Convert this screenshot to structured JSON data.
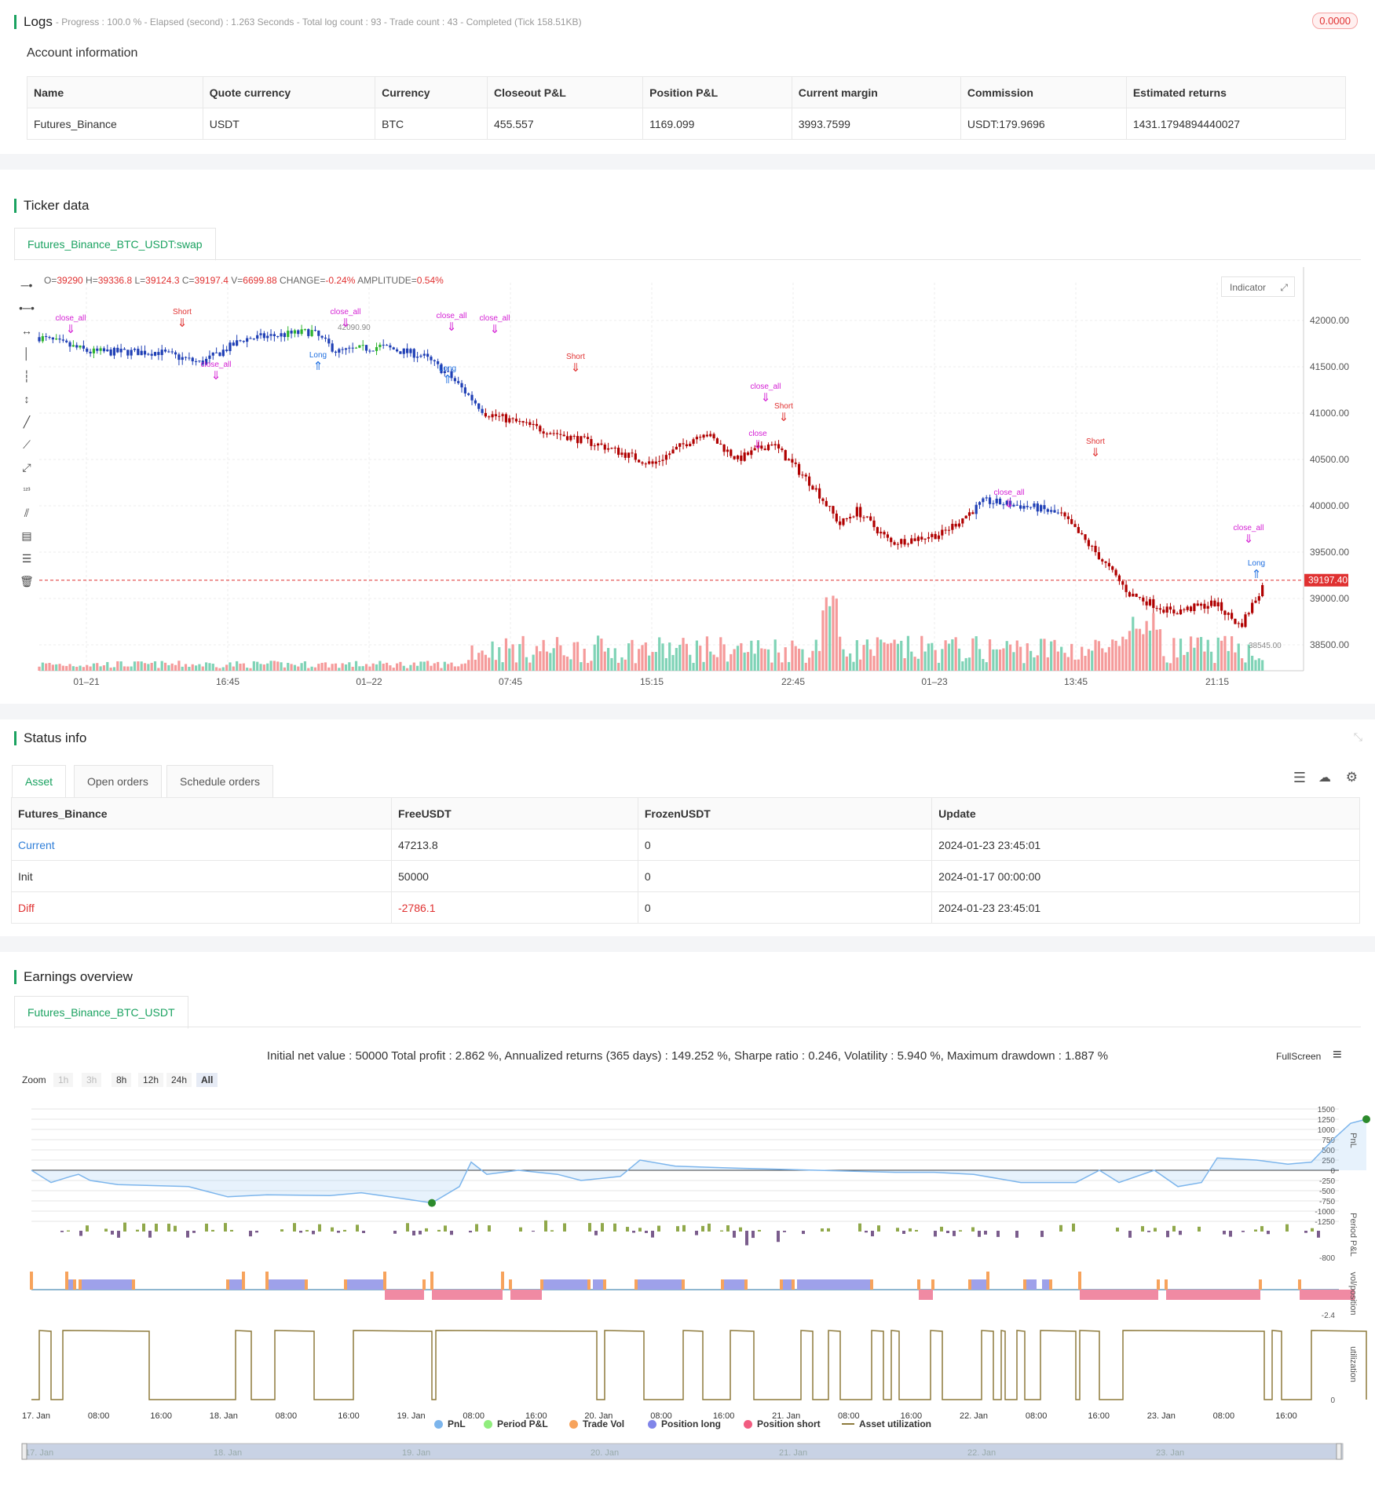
{
  "logs": {
    "title": "Logs",
    "subtitle": "- Progress : 100.0 % - Elapsed (second) : 1.263  Seconds - Total log count : 93 - Trade count : 43 - Completed (Tick 158.51KB)",
    "badge": "0.0000"
  },
  "account": {
    "title": "Account information",
    "columns": [
      "Name",
      "Quote currency",
      "Currency",
      "Closeout P&L",
      "Position P&L",
      "Current margin",
      "Commission",
      "Estimated returns"
    ],
    "row": [
      "Futures_Binance",
      "USDT",
      "BTC",
      "455.557",
      "1169.099",
      "3993.7599",
      "USDT:179.9696",
      "1431.1794894440027"
    ]
  },
  "ticker": {
    "title": "Ticker data",
    "tab": "Futures_Binance_BTC_USDT:swap",
    "ohlc": {
      "o_label": "O=",
      "o": "39290",
      "h_label": " H=",
      "h": "39336.8",
      "l_label": " L=",
      "l": "39124.3",
      "c_label": " C=",
      "c": "39197.4",
      "v_label": " V=",
      "v": "6699.88",
      "chg_label": " CHANGE=",
      "chg": "-0.24%",
      "amp_label": " AMPLITUDE=",
      "amp": "0.54%"
    },
    "indicator_btn": "Indicator",
    "y_ticks": [
      "42000.00",
      "41500.00",
      "41000.00",
      "40500.00",
      "40000.00",
      "39500.00",
      "39000.00",
      "38500.00"
    ],
    "x_ticks": [
      "01–21",
      "16:45",
      "01–22",
      "07:45",
      "15:15",
      "22:45",
      "01–23",
      "13:45",
      "21:15"
    ],
    "current_price": "39197.40",
    "marks": {
      "high": "42090.90",
      "low": "38545.00"
    },
    "signals": [
      "close_all",
      "close",
      "Short",
      "short",
      "Long",
      "long",
      "1"
    ]
  },
  "status": {
    "title": "Status info",
    "tabs": [
      "Asset",
      "Open orders",
      "Schedule orders"
    ],
    "columns": [
      "Futures_Binance",
      "FreeUSDT",
      "FrozenUSDT",
      "Update"
    ],
    "rows": [
      [
        "Current",
        "47213.8",
        "0",
        "2024-01-23 23:45:01"
      ],
      [
        "Init",
        "50000",
        "0",
        "2024-01-17 00:00:00"
      ],
      [
        "Diff",
        "-2786.1",
        "0",
        "2024-01-23 23:45:01"
      ]
    ]
  },
  "earnings": {
    "title": "Earnings overview",
    "tab": "Futures_Binance_BTC_USDT",
    "summary": "Initial net value : 50000 Total profit : 2.862 %, Annualized returns (365 days) : 149.252 %, Sharpe ratio : 0.246, Volatility : 5.940 %, Maximum drawdown : 1.887 %",
    "fullscreen": "FullScreen",
    "zoom_label": "Zoom",
    "zoom": [
      "1h",
      "3h",
      "8h",
      "12h",
      "24h",
      "All"
    ],
    "pnl_ticks": [
      "1500",
      "1250",
      "1000",
      "750",
      "500",
      "250",
      "0",
      "-250",
      "-500",
      "-750",
      "-1000",
      "-1250"
    ],
    "axis_titles": [
      "PnL",
      "Period P&L",
      "vol/position",
      "utilization"
    ],
    "period_min": "-800",
    "pos_min": "-2.4",
    "util_min": "0",
    "x_ticks": [
      "17. Jan",
      "08:00",
      "16:00",
      "18. Jan",
      "08:00",
      "16:00",
      "19. Jan",
      "08:00",
      "16:00",
      "20. Jan",
      "08:00",
      "16:00",
      "21. Jan",
      "08:00",
      "16:00",
      "22. Jan",
      "08:00",
      "16:00",
      "23. Jan",
      "08:00",
      "16:00"
    ],
    "nav_ticks": [
      "17. Jan",
      "18. Jan",
      "19. Jan",
      "20. Jan",
      "21. Jan",
      "22. Jan",
      "23. Jan"
    ],
    "legend": [
      {
        "label": "PnL",
        "color": "#7cb5ec"
      },
      {
        "label": "Period P&L",
        "color": "#90ed7d"
      },
      {
        "label": "Trade Vol",
        "color": "#f7a35c"
      },
      {
        "label": "Position long",
        "color": "#8085e9"
      },
      {
        "label": "Position short",
        "color": "#f15c80"
      },
      {
        "label": "Asset utilization",
        "color": "#8d7a3c"
      }
    ]
  }
}
